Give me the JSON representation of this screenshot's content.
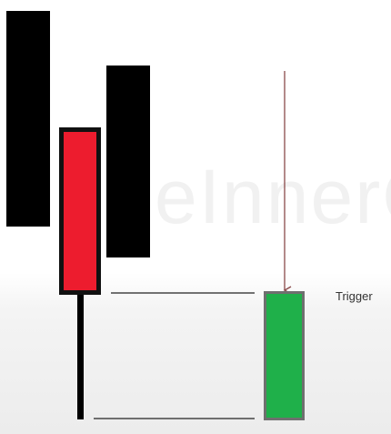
{
  "labels": {
    "trigger": "Trigger",
    "watermark": "eInnerC"
  },
  "colors": {
    "bar_black": "#000000",
    "candle_red": "#ed1c2e",
    "candle_red_border": "#111111",
    "candle_green": "#1fb04a",
    "candle_green_border": "#6f6f6f",
    "guide_line": "#222222",
    "arrow": "#8a4a4a",
    "watermark": "#f1f1f1"
  }
}
